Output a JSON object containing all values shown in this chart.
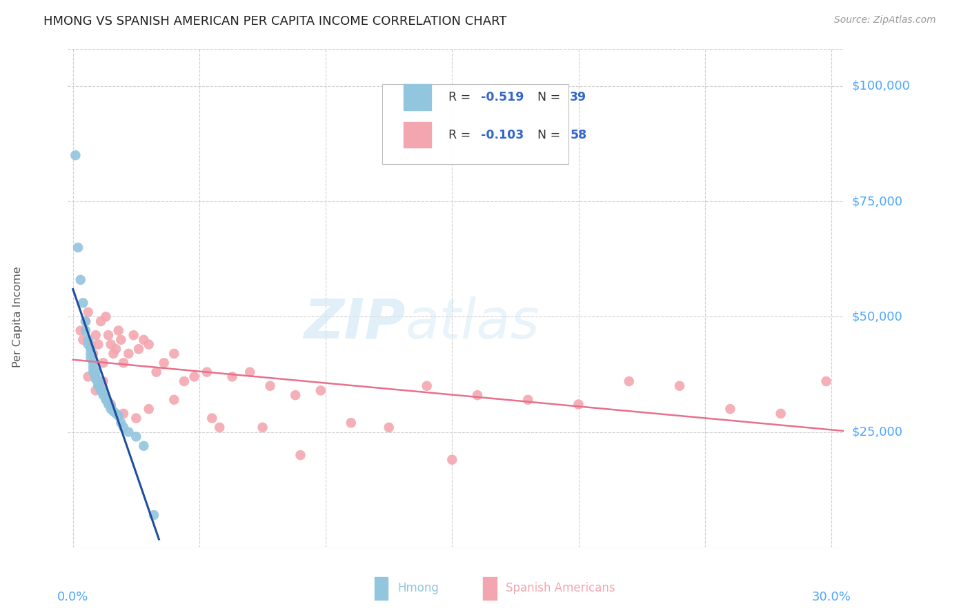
{
  "title": "HMONG VS SPANISH AMERICAN PER CAPITA INCOME CORRELATION CHART",
  "source": "Source: ZipAtlas.com",
  "ylabel": "Per Capita Income",
  "ytick_labels": [
    "$25,000",
    "$50,000",
    "$75,000",
    "$100,000"
  ],
  "ytick_values": [
    25000,
    50000,
    75000,
    100000
  ],
  "ylim": [
    0,
    108000
  ],
  "xlim": [
    -0.002,
    0.305
  ],
  "watermark_zip": "ZIP",
  "watermark_atlas": "atlas",
  "legend_R1": "-0.519",
  "legend_N1": "39",
  "legend_R2": "-0.103",
  "legend_N2": "58",
  "hmong_color": "#92c5de",
  "spanish_color": "#f4a6b0",
  "hmong_line_color": "#1f4e9e",
  "spanish_line_color": "#e8708a",
  "background_color": "#ffffff",
  "grid_color": "#d0d0d0",
  "label_color": "#4da6ff",
  "text_color": "#333333",
  "hmong_x": [
    0.001,
    0.002,
    0.003,
    0.004,
    0.005,
    0.005,
    0.006,
    0.006,
    0.007,
    0.007,
    0.007,
    0.008,
    0.008,
    0.008,
    0.009,
    0.009,
    0.009,
    0.01,
    0.01,
    0.01,
    0.011,
    0.011,
    0.012,
    0.012,
    0.013,
    0.013,
    0.014,
    0.014,
    0.015,
    0.015,
    0.016,
    0.017,
    0.018,
    0.019,
    0.02,
    0.022,
    0.025,
    0.028,
    0.032
  ],
  "hmong_y": [
    85000,
    65000,
    58000,
    53000,
    49000,
    47000,
    45000,
    44000,
    43000,
    42000,
    41000,
    40000,
    39000,
    38000,
    38000,
    37000,
    36500,
    36000,
    35500,
    35000,
    34500,
    34000,
    33500,
    33000,
    32500,
    32000,
    31500,
    31000,
    30500,
    30000,
    29500,
    29000,
    28500,
    27000,
    26000,
    25000,
    24000,
    22000,
    7000
  ],
  "spanish_x": [
    0.003,
    0.004,
    0.005,
    0.006,
    0.007,
    0.008,
    0.009,
    0.01,
    0.011,
    0.012,
    0.013,
    0.014,
    0.015,
    0.016,
    0.017,
    0.018,
    0.019,
    0.02,
    0.022,
    0.024,
    0.026,
    0.028,
    0.03,
    0.033,
    0.036,
    0.04,
    0.044,
    0.048,
    0.053,
    0.058,
    0.063,
    0.07,
    0.078,
    0.088,
    0.098,
    0.11,
    0.125,
    0.14,
    0.16,
    0.18,
    0.2,
    0.22,
    0.24,
    0.26,
    0.28,
    0.298,
    0.006,
    0.009,
    0.012,
    0.015,
    0.02,
    0.025,
    0.03,
    0.04,
    0.055,
    0.075,
    0.09,
    0.15
  ],
  "spanish_y": [
    47000,
    45000,
    49000,
    51000,
    44000,
    42000,
    46000,
    44000,
    49000,
    40000,
    50000,
    46000,
    44000,
    42000,
    43000,
    47000,
    45000,
    40000,
    42000,
    46000,
    43000,
    45000,
    44000,
    38000,
    40000,
    42000,
    36000,
    37000,
    38000,
    26000,
    37000,
    38000,
    35000,
    33000,
    34000,
    27000,
    26000,
    35000,
    33000,
    32000,
    31000,
    36000,
    35000,
    30000,
    29000,
    36000,
    37000,
    34000,
    36000,
    31000,
    29000,
    28000,
    30000,
    32000,
    28000,
    26000,
    20000,
    19000
  ]
}
